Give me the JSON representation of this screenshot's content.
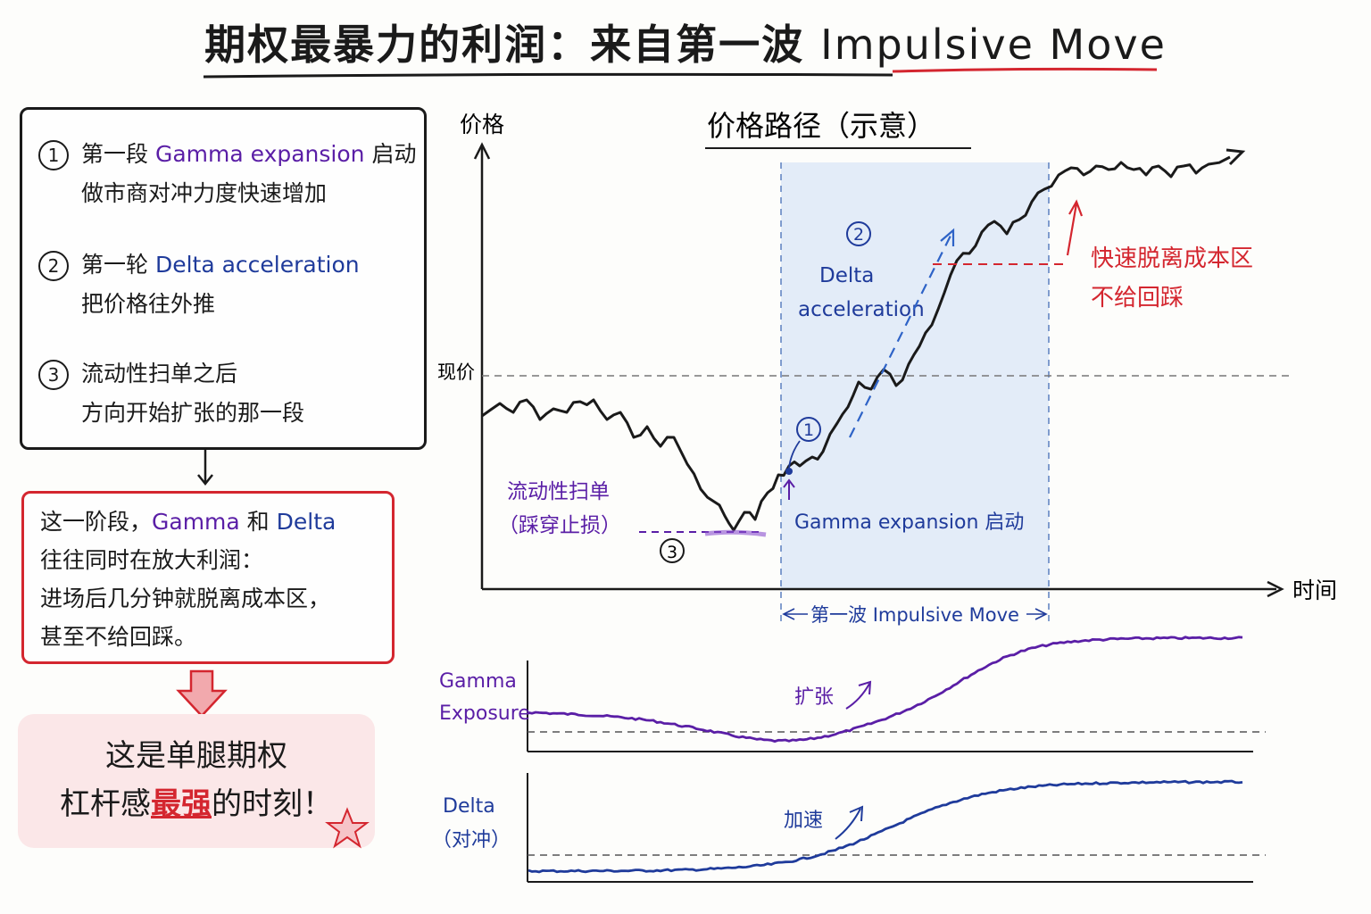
{
  "title": {
    "main": "期权最暴力的利润：来自第一波",
    "en": "Impulsive Move"
  },
  "left_panel": {
    "items": [
      {
        "num": "1",
        "line1_a": "第一段",
        "line1_en": "Gamma expansion",
        "line1_b": "启动",
        "line2": "做市商对冲力度快速增加"
      },
      {
        "num": "2",
        "line1_a": "第一轮",
        "line1_en": "Delta acceleration",
        "line2": "把价格往外推"
      },
      {
        "num": "3",
        "line1_a": "流动性扫单之后",
        "line2": "方向开始扩张的那一段"
      }
    ]
  },
  "red_box": {
    "l1_a": "这一阶段，",
    "l1_g": "Gamma",
    "l1_and": " 和 ",
    "l1_d": "Delta",
    "l2": "往往同时在放大利润：",
    "l3": "进场后几分钟就脱离成本区，",
    "l4": "甚至不给回踩。"
  },
  "conclusion": {
    "l1": "这是单腿期权",
    "l2_a": "杠杆感",
    "l2_emph": "最强",
    "l2_b": "的时刻！"
  },
  "chart": {
    "title": "价格路径（示意）",
    "ylabel": "价格",
    "xlabel": "时间",
    "current_price_label": "现价",
    "label_sweep_1": "流动性扫单",
    "label_sweep_2": "（踩穿止损）",
    "label_gamma_start": "Gamma expansion 启动",
    "label_delta_1": "Delta",
    "label_delta_2": "acceleration",
    "label_exit_1": "快速脱离成本区",
    "label_exit_2": "不给回踩",
    "label_wave": "第一波 Impulsive Move",
    "marker_1": "1",
    "marker_2": "2",
    "marker_3": "3"
  },
  "gamma_panel": {
    "label_1": "Gamma",
    "label_2": "Exposure",
    "annotation": "扩张"
  },
  "delta_panel": {
    "label_1": "Delta",
    "label_2": "（对冲）",
    "annotation": "加速"
  },
  "colors": {
    "purple": "#5a1ea6",
    "blue": "#1f3b9b",
    "red": "#d4262f",
    "shade": "#e3ecf8"
  }
}
